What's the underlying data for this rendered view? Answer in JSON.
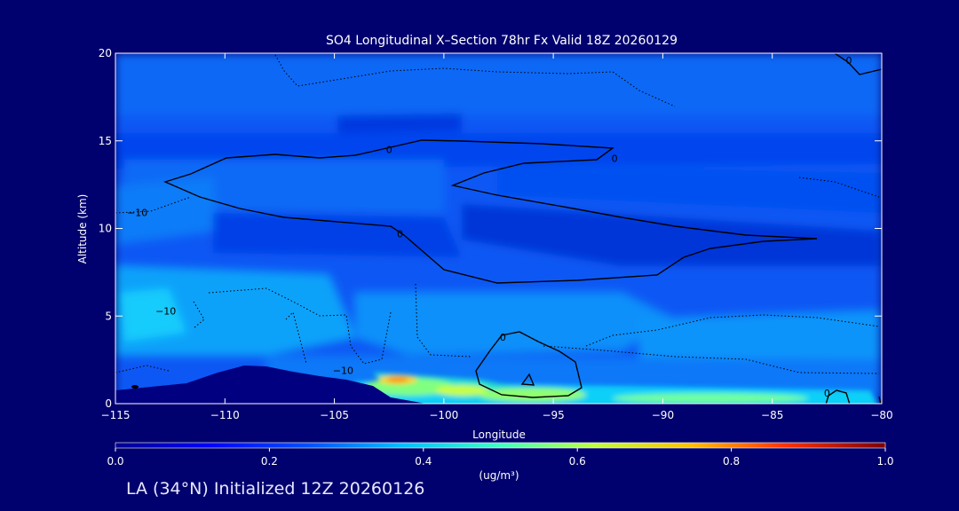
{
  "chart_data": {
    "type": "heatmap",
    "title": "SO4 Longitudinal X–Section 78hr  Fx Valid 18Z 20260129",
    "xlabel": "Longitude",
    "ylabel": "Altitude (km)",
    "xlim": [
      -115,
      -80
    ],
    "ylim": [
      0,
      20
    ],
    "x_ticks": [
      -115,
      -110,
      -105,
      -100,
      -95,
      -90,
      -85,
      -80
    ],
    "x_tick_labels": [
      "−115",
      "−110",
      "−105",
      "−100",
      "−95",
      "−90",
      "−85",
      "−80"
    ],
    "y_ticks": [
      0,
      5,
      10,
      15,
      20
    ],
    "y_tick_labels": [
      "0",
      "5",
      "10",
      "15",
      "20"
    ],
    "colorbar": {
      "min": 0.0,
      "max": 1.0,
      "ticks": [
        0.0,
        0.2,
        0.4,
        0.6,
        0.8,
        1.0
      ],
      "tick_labels": [
        "0.0",
        "0.2",
        "0.4",
        "0.6",
        "0.8",
        "1.0"
      ],
      "unit_label": "(ug/m³)"
    },
    "contour_labels": [
      {
        "text": "0",
        "x": -102.5,
        "y": 14.5
      },
      {
        "text": "0",
        "x": -92.2,
        "y": 14.0
      },
      {
        "text": "0",
        "x": -102.0,
        "y": 9.7
      },
      {
        "text": "0",
        "x": -97.3,
        "y": 3.8
      },
      {
        "text": "0",
        "x": -82.5,
        "y": 0.6
      },
      {
        "text": "0",
        "x": -81.5,
        "y": 19.6
      },
      {
        "text": "−10",
        "x": -114.0,
        "y": 10.9
      },
      {
        "text": "−10",
        "x": -112.7,
        "y": 5.3
      },
      {
        "text": "−10",
        "x": -104.6,
        "y": 1.9
      }
    ],
    "field_samples": [
      {
        "x": -112,
        "y": 18,
        "value": 0.2
      },
      {
        "x": -105,
        "y": 16,
        "value": 0.14
      },
      {
        "x": -110,
        "y": 13,
        "value": 0.17
      },
      {
        "x": -110,
        "y": 9.5,
        "value": 0.16
      },
      {
        "x": -114,
        "y": 5,
        "value": 0.34
      },
      {
        "x": -105,
        "y": 6,
        "value": 0.27
      },
      {
        "x": -95,
        "y": 6,
        "value": 0.24
      },
      {
        "x": -88,
        "y": 6,
        "value": 0.27
      },
      {
        "x": -85,
        "y": 13,
        "value": 0.2
      },
      {
        "x": -102,
        "y": 1.4,
        "value": 0.7
      },
      {
        "x": -96,
        "y": 0.6,
        "value": 0.5
      },
      {
        "x": -88,
        "y": 0.5,
        "value": 0.45
      }
    ]
  },
  "footer": {
    "text": "LA (34°N) Initialized 12Z 20260126"
  },
  "colors": {
    "background": "#00006e",
    "frame": "#ffffff",
    "contour": "#000000",
    "terrain": "#000080"
  }
}
